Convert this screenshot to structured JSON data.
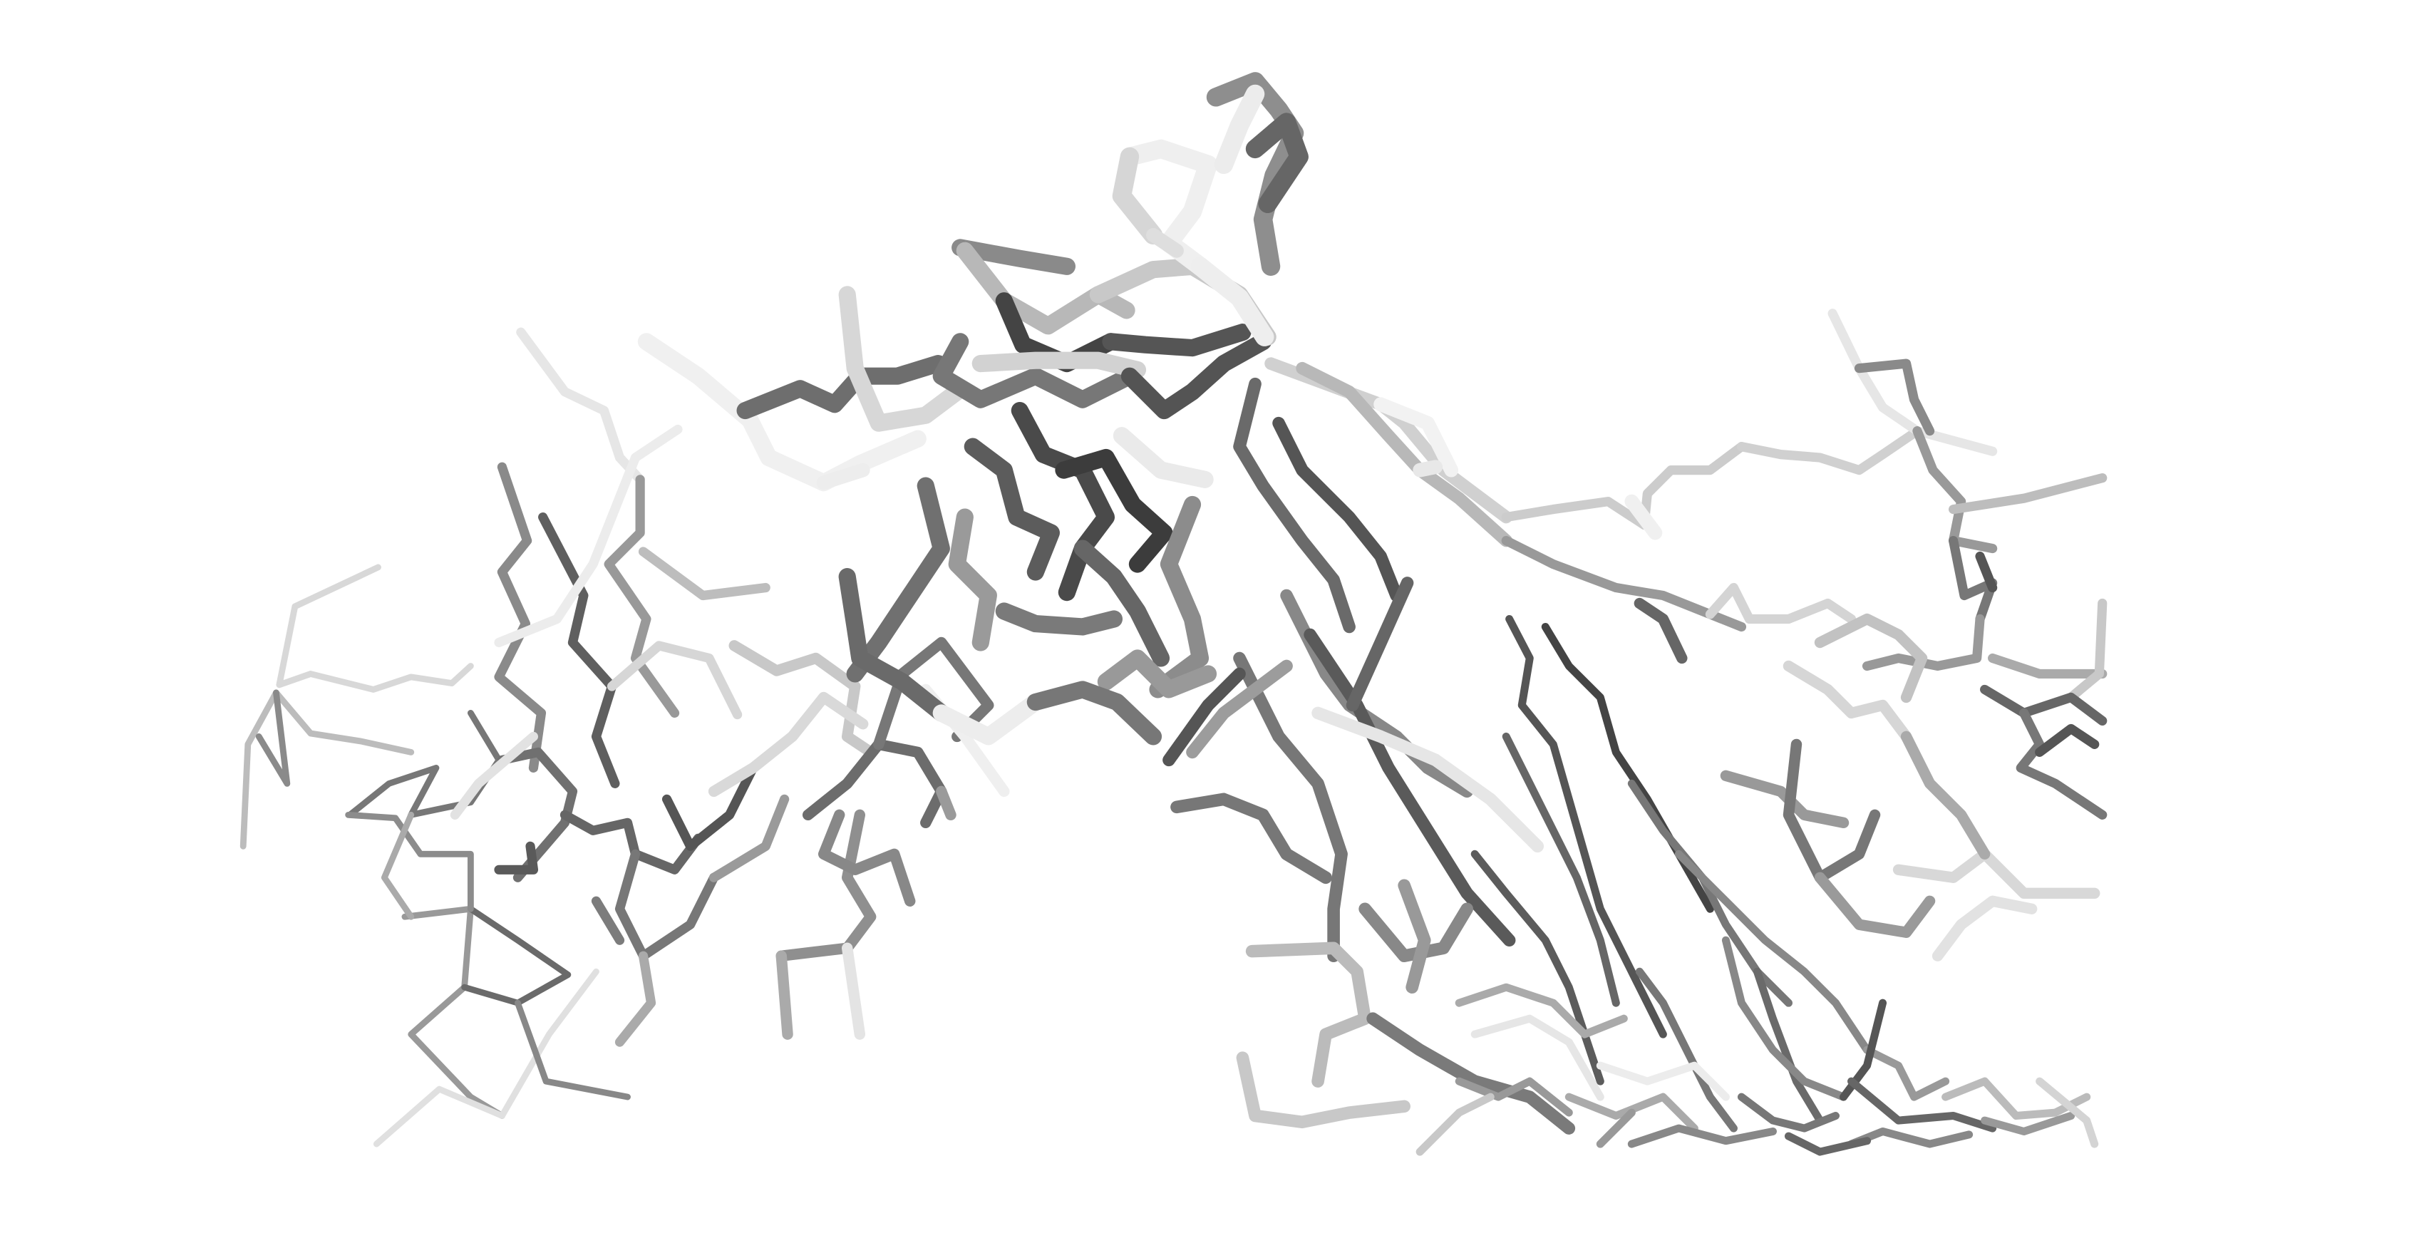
{
  "scene": {
    "kind": "protein backbone trace render",
    "background": "#ffffff",
    "palette": {
      "dark": "#3c3c3c",
      "mid": "#6e6e6e",
      "light": "#a8a8a8",
      "pale": "#dcdcdc",
      "white": "#f4f4f4"
    }
  }
}
